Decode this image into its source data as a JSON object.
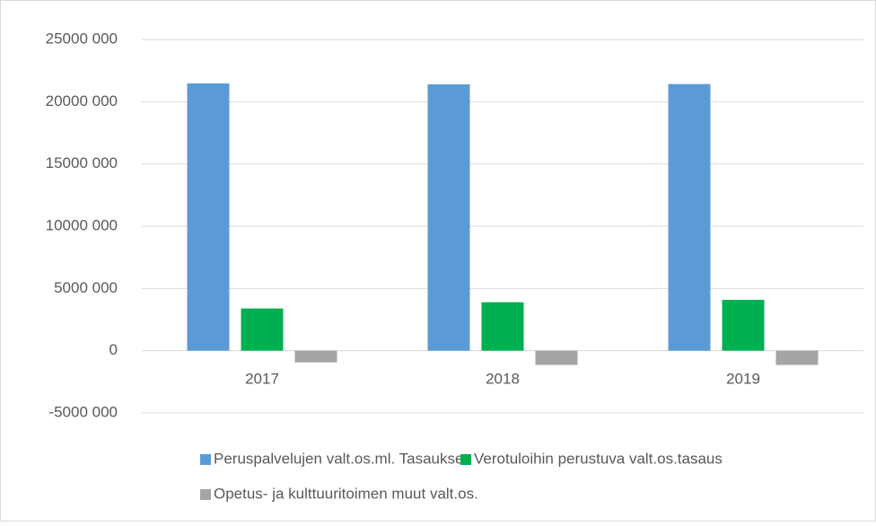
{
  "chart_data": {
    "type": "bar",
    "categories": [
      "2017",
      "2018",
      "2019"
    ],
    "series": [
      {
        "name": "Peruspalvelujen valt.os.ml. Tasaukset",
        "color": "#5b9bd5",
        "values": [
          21470000,
          21400000,
          21420000
        ]
      },
      {
        "name": "Verotuloihin perustuva valt.os.tasaus",
        "color": "#00b050",
        "values": [
          3390000,
          3890000,
          4080000
        ]
      },
      {
        "name": "Opetus- ja kulttuuritoimen muut valt.os.",
        "color": "#a5a5a5",
        "values": [
          -940000,
          -1150000,
          -1150000
        ]
      }
    ],
    "ylim": [
      -5000000,
      25000000
    ],
    "yticks": [
      {
        "value": -5000000,
        "label": "-5000 000"
      },
      0,
      {
        "value": 5000000,
        "label": "5000 000"
      },
      {
        "value": 10000000,
        "label": "10000 000"
      },
      {
        "value": 15000000,
        "label": "15000 000"
      },
      {
        "value": 20000000,
        "label": "20000 000"
      },
      {
        "value": 25000000,
        "label": "25000 000"
      }
    ],
    "grid": true
  }
}
